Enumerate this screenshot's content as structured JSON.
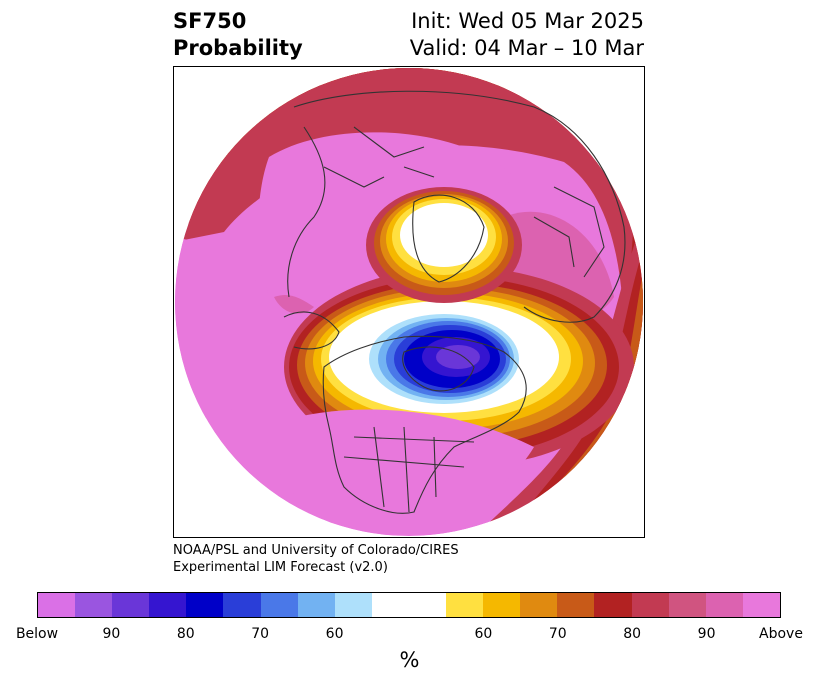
{
  "title": {
    "variable": "SF750",
    "product": "Probability",
    "init": "Init: Wed 05 Mar 2025",
    "valid": "Valid: 04 Mar – 10 Mar"
  },
  "credit": {
    "line1": "NOAA/PSL and University of Colorado/CIRES",
    "line2": "Experimental LIM Forecast (v2.0)"
  },
  "map": {
    "projection": "north-polar-stereographic",
    "coastline_color": "#333333",
    "anomaly_regions": [
      {
        "name": "strong-below-hudson-bay",
        "category": "Below"
      },
      {
        "name": "above-north-pole-high",
        "category": "Above"
      }
    ]
  },
  "colorbar": {
    "unit": "%",
    "colors": [
      "#da70e6",
      "#9a55e0",
      "#6a36d8",
      "#3515d0",
      "#0000c8",
      "#2a3ed8",
      "#4a78e8",
      "#72b2f2",
      "#aee0fb",
      "#ffffff",
      "#ffe040",
      "#f5b800",
      "#e08a10",
      "#c85a18",
      "#b22222",
      "#c23a52",
      "#d05480",
      "#dc62b0",
      "#e878dc"
    ],
    "tick_labels": [
      "Below",
      "90",
      "80",
      "70",
      "60",
      "60",
      "70",
      "80",
      "90",
      "Above"
    ]
  }
}
